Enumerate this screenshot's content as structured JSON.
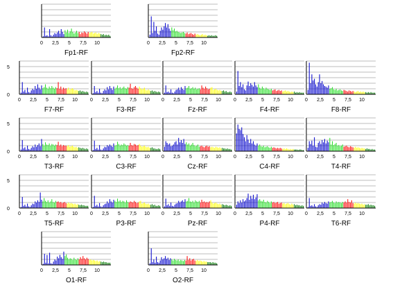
{
  "chart_data": [
    {
      "type": "bar",
      "name": "Fp1-RF",
      "xticks": [
        "0",
        "2,5",
        "5",
        "7,5",
        "10"
      ],
      "yticks": [],
      "xlim": [
        0,
        12.5
      ],
      "ylim": [
        0,
        6
      ],
      "grid": true,
      "values": [
        0,
        0.2,
        1.8,
        0.3,
        0.4,
        0.2,
        1.5,
        0.4,
        0.2,
        0.5,
        0.8,
        0.6,
        0.9,
        1.2,
        0.7,
        1.5,
        1.0,
        0.6,
        1.3,
        0.9,
        1.4,
        0.8,
        1.1,
        1.6,
        1.0,
        0.7,
        0.9,
        1.2,
        0.8,
        1.0,
        0.6,
        0.9,
        0.8,
        1.1,
        0.9,
        0.7,
        1.0,
        0.8,
        0.9,
        1.0,
        0.7,
        0.8,
        0.9,
        0.6,
        0.8,
        0.7,
        0.6,
        0.5,
        0.6,
        0.4,
        0.5,
        0.4,
        0.5,
        0.3
      ]
    },
    {
      "type": "bar",
      "name": "Fp2-RF",
      "xticks": [
        "0",
        "2,5",
        "5",
        "7,5",
        "10"
      ],
      "yticks": [],
      "xlim": [
        0,
        12.5
      ],
      "ylim": [
        0,
        6
      ],
      "grid": true,
      "values": [
        0,
        0.5,
        3.8,
        0.8,
        2.8,
        1.2,
        2.0,
        0.7,
        0.5,
        1.2,
        1.8,
        1.4,
        2.0,
        2.6,
        1.8,
        2.4,
        1.6,
        1.2,
        1.8,
        1.3,
        1.6,
        1.1,
        1.2,
        1.0,
        0.9,
        0.8,
        0.9,
        1.0,
        0.8,
        0.7,
        0.9,
        0.6,
        0.7,
        0.8,
        0.6,
        0.5,
        0.7,
        0.5,
        0.6,
        0.5,
        0.4,
        0.5,
        0.6,
        0.4,
        0.5,
        0.4,
        0.3,
        0.4,
        0.3,
        0.4,
        0.3,
        0.3,
        0.4,
        0.3
      ]
    },
    {
      "type": "bar",
      "name": "F7-RF",
      "xticks": [
        "0",
        "2,5",
        "5",
        "7,5",
        "10"
      ],
      "yticks": [
        "5",
        "0"
      ],
      "xlim": [
        0,
        12.5
      ],
      "ylim": [
        0,
        6
      ],
      "grid": true,
      "values": [
        0,
        0.3,
        2.2,
        0.5,
        0.8,
        0.3,
        1.2,
        0.4,
        0.3,
        0.7,
        1.0,
        0.8,
        1.5,
        1.0,
        1.8,
        1.2,
        0.9,
        1.6,
        1.1,
        1.3,
        1.8,
        1.2,
        1.0,
        1.4,
        1.1,
        1.5,
        1.2,
        1.0,
        1.3,
        1.1,
        2.2,
        1.0,
        1.4,
        0.9,
        1.2,
        1.0,
        1.1,
        0.9,
        1.2,
        0.8,
        1.0,
        1.1,
        0.9,
        0.7,
        0.8,
        0.7,
        0.6,
        0.7,
        0.5,
        0.6,
        0.5,
        0.4,
        0.5,
        0.4
      ]
    },
    {
      "type": "bar",
      "name": "F3-RF",
      "xticks": [
        "0",
        "2,5",
        "5",
        "7,5",
        "10"
      ],
      "yticks": [],
      "xlim": [
        0,
        12.5
      ],
      "ylim": [
        0,
        6
      ],
      "grid": true,
      "values": [
        0,
        0.2,
        1.5,
        0.4,
        0.6,
        0.3,
        1.0,
        0.3,
        0.2,
        0.6,
        0.9,
        0.7,
        1.3,
        0.9,
        1.5,
        1.1,
        0.8,
        1.4,
        1.0,
        1.2,
        1.6,
        1.1,
        1.3,
        1.0,
        1.2,
        1.4,
        1.1,
        1.0,
        1.3,
        1.2,
        1.9,
        1.1,
        1.0,
        1.3,
        1.5,
        1.2,
        1.0,
        1.4,
        1.1,
        0.9,
        1.0,
        1.2,
        0.8,
        0.7,
        0.9,
        0.7,
        0.6,
        0.7,
        0.5,
        0.6,
        0.5,
        0.4,
        0.5,
        0.4
      ]
    },
    {
      "type": "bar",
      "name": "Fz-RF",
      "xticks": [
        "0",
        "2,5",
        "5",
        "7,5",
        "10"
      ],
      "yticks": [],
      "xlim": [
        0,
        12.5
      ],
      "ylim": [
        0,
        6
      ],
      "grid": true,
      "values": [
        0,
        0.3,
        1.6,
        0.4,
        0.5,
        0.3,
        0.9,
        0.3,
        0.2,
        0.5,
        0.8,
        0.9,
        1.2,
        0.8,
        1.3,
        1.0,
        0.8,
        1.5,
        1.1,
        1.2,
        1.5,
        1.0,
        1.1,
        1.3,
        1.0,
        1.2,
        0.9,
        1.0,
        1.1,
        0.9,
        1.6,
        1.2,
        1.0,
        1.4,
        1.1,
        0.9,
        1.0,
        1.2,
        1.3,
        0.8,
        0.9,
        1.0,
        0.8,
        0.7,
        0.8,
        0.6,
        0.6,
        0.7,
        0.5,
        0.6,
        0.4,
        0.4,
        0.5,
        0.4
      ]
    },
    {
      "type": "bar",
      "name": "F4-RF",
      "xticks": [
        "0",
        "2,5",
        "5",
        "7,5",
        "10"
      ],
      "yticks": [],
      "xlim": [
        0,
        12.5
      ],
      "ylim": [
        0,
        6
      ],
      "grid": true,
      "values": [
        0,
        0.5,
        4.2,
        1.5,
        2.2,
        1.3,
        1.8,
        0.9,
        0.7,
        1.6,
        2.3,
        1.5,
        2.0,
        1.7,
        1.4,
        2.2,
        1.6,
        1.3,
        1.8,
        1.2,
        1.0,
        1.4,
        1.1,
        0.9,
        1.2,
        1.0,
        0.9,
        0.8,
        1.0,
        0.7,
        0.8,
        0.9,
        0.6,
        0.7,
        0.8,
        0.6,
        0.7,
        0.5,
        0.6,
        0.7,
        0.5,
        0.6,
        0.5,
        0.4,
        0.5,
        0.4,
        0.5,
        0.3,
        0.4,
        0.3,
        0.4,
        0.3,
        0.3,
        0.3
      ]
    },
    {
      "type": "bar",
      "name": "F8-RF",
      "xticks": [
        "0",
        "2,5",
        "5",
        "7,5",
        "10"
      ],
      "yticks": [],
      "xlim": [
        0,
        12.5
      ],
      "ylim": [
        0,
        6
      ],
      "grid": true,
      "values": [
        0,
        0.8,
        5.7,
        2.0,
        3.6,
        2.5,
        2.8,
        1.8,
        1.4,
        2.2,
        3.6,
        2.0,
        2.4,
        1.8,
        1.5,
        1.4,
        1.2,
        1.6,
        1.0,
        1.1,
        1.3,
        0.9,
        0.8,
        1.0,
        0.7,
        0.8,
        0.9,
        0.7,
        0.6,
        0.8,
        0.7,
        0.6,
        0.5,
        0.7,
        0.6,
        0.5,
        0.6,
        0.5,
        0.4,
        0.5,
        0.6,
        0.4,
        0.5,
        0.4,
        0.5,
        0.4,
        0.4,
        0.3,
        0.4,
        0.3,
        0.4,
        0.3,
        0.3,
        0.3
      ]
    },
    {
      "type": "bar",
      "name": "T3-RF",
      "xticks": [
        "0",
        "2,5",
        "5",
        "7,5",
        "10"
      ],
      "yticks": [
        "5",
        "0"
      ],
      "xlim": [
        0,
        12.5
      ],
      "ylim": [
        0,
        6
      ],
      "grid": true,
      "values": [
        0,
        0.3,
        2.0,
        0.5,
        0.7,
        0.3,
        1.0,
        0.4,
        0.3,
        0.6,
        0.9,
        0.7,
        1.2,
        0.8,
        1.1,
        1.4,
        0.9,
        2.2,
        1.3,
        1.0,
        1.6,
        1.2,
        1.1,
        1.4,
        1.0,
        1.3,
        1.2,
        1.0,
        1.2,
        1.1,
        1.7,
        1.0,
        1.2,
        0.9,
        1.1,
        1.0,
        1.0,
        0.9,
        1.1,
        0.8,
        0.9,
        1.0,
        0.8,
        0.7,
        0.8,
        0.6,
        0.7,
        0.6,
        0.5,
        0.6,
        0.5,
        0.4,
        0.5,
        0.4
      ]
    },
    {
      "type": "bar",
      "name": "C3-RF",
      "xticks": [
        "0",
        "2,5",
        "5",
        "7,5",
        "10"
      ],
      "yticks": [],
      "xlim": [
        0,
        12.5
      ],
      "ylim": [
        0,
        6
      ],
      "grid": true,
      "values": [
        0,
        0.2,
        1.9,
        0.4,
        0.6,
        0.3,
        1.1,
        0.3,
        0.2,
        0.5,
        0.8,
        0.7,
        1.1,
        0.9,
        1.2,
        1.0,
        0.8,
        1.4,
        1.0,
        1.1,
        1.7,
        1.3,
        1.0,
        1.2,
        1.1,
        1.4,
        1.2,
        1.0,
        1.1,
        1.0,
        1.5,
        1.1,
        1.0,
        1.3,
        1.2,
        1.0,
        1.1,
        1.3,
        1.0,
        0.8,
        0.9,
        1.0,
        0.8,
        0.7,
        0.8,
        0.6,
        0.6,
        0.7,
        0.5,
        0.5,
        0.4,
        0.4,
        0.5,
        0.4
      ]
    },
    {
      "type": "bar",
      "name": "Cz-RF",
      "xticks": [
        "0",
        "2,5",
        "5",
        "7,5",
        "10"
      ],
      "yticks": [],
      "xlim": [
        0,
        12.5
      ],
      "ylim": [
        0,
        6
      ],
      "grid": true,
      "values": [
        0,
        0.8,
        1.8,
        1.5,
        1.2,
        1.4,
        0.9,
        1.0,
        1.2,
        1.6,
        1.8,
        1.2,
        2.4,
        1.6,
        2.0,
        1.5,
        2.2,
        1.3,
        1.6,
        1.2,
        1.4,
        1.0,
        1.2,
        1.5,
        1.1,
        0.9,
        1.0,
        1.2,
        0.8,
        0.9,
        1.0,
        0.8,
        0.7,
        0.9,
        1.0,
        0.8,
        0.9,
        0.7,
        0.8,
        0.7,
        0.6,
        0.8,
        0.7,
        0.6,
        0.7,
        0.5,
        0.6,
        0.5,
        0.5,
        0.4,
        0.5,
        0.4,
        0.4,
        0.3
      ]
    },
    {
      "type": "bar",
      "name": "C4-RF",
      "xticks": [
        "0",
        "2,5",
        "5",
        "7,5",
        "10"
      ],
      "yticks": [],
      "xlim": [
        0,
        12.5
      ],
      "ylim": [
        0,
        6
      ],
      "grid": true,
      "values": [
        0,
        3.2,
        4.8,
        4.0,
        3.8,
        4.3,
        3.1,
        2.5,
        1.8,
        2.9,
        2.1,
        1.5,
        2.2,
        1.4,
        1.8,
        1.2,
        1.0,
        1.4,
        1.0,
        1.2,
        0.9,
        0.8,
        1.0,
        0.7,
        0.8,
        0.9,
        0.7,
        0.6,
        0.8,
        0.6,
        0.7,
        0.6,
        0.5,
        0.6,
        0.5,
        0.6,
        0.5,
        0.4,
        0.5,
        0.4,
        0.5,
        0.4,
        0.3,
        0.4,
        0.3,
        0.4,
        0.3,
        0.3,
        0.3,
        0.2,
        0.3,
        0.3,
        0.2,
        0.2
      ]
    },
    {
      "type": "bar",
      "name": "T4-RF",
      "xticks": [
        "0",
        "2,5",
        "5",
        "7,5",
        "10"
      ],
      "yticks": [],
      "xlim": [
        0,
        12.5
      ],
      "ylim": [
        0,
        6
      ],
      "grid": true,
      "values": [
        0,
        0.6,
        1.8,
        1.3,
        1.9,
        1.0,
        2.5,
        0.8,
        0.7,
        1.5,
        1.8,
        1.3,
        2.0,
        1.6,
        2.2,
        1.4,
        1.9,
        1.6,
        2.4,
        1.2,
        1.8,
        1.1,
        1.3,
        1.5,
        1.0,
        1.1,
        0.9,
        1.0,
        1.2,
        0.8,
        0.9,
        1.0,
        0.8,
        0.7,
        0.9,
        0.8,
        0.7,
        0.6,
        0.8,
        0.6,
        0.7,
        0.6,
        0.5,
        0.6,
        0.5,
        0.5,
        0.4,
        0.5,
        0.4,
        0.4,
        0.3,
        0.4,
        0.3,
        0.3
      ]
    },
    {
      "type": "bar",
      "name": "T5-RF",
      "xticks": [
        "0",
        "2,5",
        "5",
        "7,5",
        "10"
      ],
      "yticks": [
        "5",
        "0"
      ],
      "xlim": [
        0,
        12.5
      ],
      "ylim": [
        0,
        6
      ],
      "grid": true,
      "values": [
        0,
        0.2,
        2.0,
        0.4,
        0.6,
        0.3,
        0.8,
        0.3,
        0.2,
        0.5,
        0.8,
        0.7,
        1.2,
        1.0,
        1.4,
        1.1,
        2.8,
        1.5,
        1.2,
        1.8,
        1.3,
        1.1,
        1.4,
        1.0,
        1.2,
        1.6,
        1.1,
        1.0,
        1.3,
        1.1,
        1.2,
        1.0,
        1.1,
        0.9,
        1.0,
        1.1,
        0.9,
        0.8,
        1.0,
        0.8,
        0.9,
        0.8,
        0.7,
        0.8,
        0.6,
        0.7,
        0.6,
        0.5,
        0.6,
        0.5,
        0.5,
        0.4,
        0.4,
        0.4
      ]
    },
    {
      "type": "bar",
      "name": "P3-RF",
      "xticks": [
        "0",
        "2,5",
        "5",
        "7,5",
        "10"
      ],
      "yticks": [],
      "xlim": [
        0,
        12.5
      ],
      "ylim": [
        0,
        6
      ],
      "grid": true,
      "values": [
        0,
        0.2,
        2.2,
        0.4,
        0.6,
        0.3,
        0.9,
        0.3,
        0.2,
        0.5,
        0.7,
        0.8,
        1.2,
        0.9,
        1.6,
        1.2,
        1.0,
        1.5,
        1.3,
        1.1,
        1.7,
        1.2,
        1.4,
        1.1,
        1.3,
        1.2,
        1.0,
        1.4,
        1.1,
        1.0,
        1.2,
        1.1,
        1.0,
        1.3,
        1.1,
        0.9,
        1.0,
        1.2,
        1.3,
        0.8,
        0.9,
        1.0,
        0.8,
        0.7,
        0.8,
        0.6,
        0.6,
        0.7,
        0.5,
        0.6,
        0.4,
        0.4,
        0.5,
        0.4
      ]
    },
    {
      "type": "bar",
      "name": "Pz-RF",
      "xticks": [
        "0",
        "2,5",
        "5",
        "7,5",
        "10"
      ],
      "yticks": [],
      "xlim": [
        0,
        12.5
      ],
      "ylim": [
        0,
        6
      ],
      "grid": true,
      "values": [
        0,
        0.3,
        1.7,
        0.5,
        0.7,
        0.4,
        1.0,
        0.4,
        0.3,
        0.6,
        0.8,
        0.9,
        1.3,
        1.0,
        1.2,
        1.4,
        1.1,
        1.6,
        1.2,
        1.3,
        1.8,
        1.2,
        1.1,
        1.3,
        1.0,
        1.4,
        1.2,
        1.1,
        1.3,
        1.0,
        1.5,
        1.1,
        1.2,
        1.0,
        1.1,
        1.0,
        1.2,
        1.4,
        1.0,
        0.8,
        0.9,
        1.0,
        0.8,
        0.7,
        0.8,
        0.6,
        0.7,
        0.6,
        0.5,
        0.6,
        0.5,
        0.4,
        0.5,
        0.4
      ]
    },
    {
      "type": "bar",
      "name": "P4-RF",
      "xticks": [
        "0",
        "2,5",
        "5",
        "7,5",
        "10"
      ],
      "yticks": [],
      "xlim": [
        0,
        12.5
      ],
      "ylim": [
        0,
        6
      ],
      "grid": true,
      "values": [
        0,
        0.6,
        1.2,
        0.9,
        1.4,
        1.0,
        1.6,
        1.2,
        1.4,
        1.8,
        2.6,
        1.5,
        2.2,
        1.7,
        2.4,
        1.6,
        1.9,
        2.5,
        1.4,
        1.6,
        1.3,
        1.2,
        1.5,
        1.1,
        1.0,
        1.3,
        1.1,
        0.9,
        1.2,
        1.0,
        1.1,
        0.9,
        1.0,
        1.1,
        0.8,
        0.9,
        1.0,
        0.8,
        0.9,
        0.7,
        0.8,
        0.9,
        0.7,
        0.6,
        0.8,
        0.6,
        0.7,
        0.5,
        0.6,
        0.5,
        0.5,
        0.4,
        0.5,
        0.4
      ]
    },
    {
      "type": "bar",
      "name": "T6-RF",
      "xticks": [
        "0",
        "2,5",
        "5",
        "7,5",
        "10"
      ],
      "yticks": [],
      "xlim": [
        0,
        12.5
      ],
      "ylim": [
        0,
        6
      ],
      "grid": true,
      "values": [
        0,
        0.2,
        1.8,
        0.4,
        0.5,
        0.3,
        0.7,
        0.3,
        0.2,
        0.5,
        0.7,
        0.6,
        1.0,
        0.8,
        1.1,
        0.9,
        0.8,
        1.2,
        1.0,
        1.1,
        1.3,
        1.0,
        0.9,
        1.2,
        1.0,
        1.1,
        1.0,
        0.9,
        1.1,
        1.0,
        1.2,
        1.0,
        1.6,
        1.1,
        1.0,
        1.4,
        0.9,
        0.8,
        1.0,
        0.8,
        0.9,
        0.8,
        0.7,
        0.8,
        0.6,
        0.7,
        0.6,
        0.6,
        0.7,
        0.5,
        0.6,
        0.5,
        0.5,
        0.4
      ]
    },
    {
      "type": "bar",
      "name": "O1-RF",
      "xticks": [
        "0",
        "2,5",
        "5",
        "7,5",
        "10"
      ],
      "yticks": [],
      "xlim": [
        0,
        12.5
      ],
      "ylim": [
        0,
        6
      ],
      "grid": true,
      "values": [
        0,
        0.2,
        2.0,
        0.4,
        1.8,
        0.3,
        2.2,
        0.3,
        0.2,
        0.6,
        1.0,
        0.8,
        1.5,
        1.2,
        1.8,
        1.4,
        1.1,
        2.4,
        1.6,
        1.9,
        1.3,
        1.0,
        1.2,
        1.1,
        0.9,
        1.3,
        1.0,
        0.9,
        1.2,
        1.0,
        1.4,
        1.1,
        1.6,
        1.2,
        1.0,
        1.3,
        1.1,
        0.9,
        1.0,
        0.8,
        0.9,
        0.8,
        0.7,
        0.8,
        0.6,
        0.7,
        0.6,
        0.5,
        0.6,
        0.5,
        0.5,
        0.4,
        0.4,
        0.4
      ]
    },
    {
      "type": "bar",
      "name": "O2-RF",
      "xticks": [
        "0",
        "2,5",
        "5",
        "7,5",
        "10"
      ],
      "yticks": [],
      "xlim": [
        0,
        12.5
      ],
      "ylim": [
        0,
        6
      ],
      "grid": true,
      "values": [
        0,
        0.3,
        3.0,
        0.5,
        1.0,
        0.4,
        1.5,
        0.5,
        0.4,
        0.8,
        1.4,
        1.0,
        1.2,
        1.6,
        1.1,
        1.3,
        0.9,
        1.2,
        1.0,
        0.8,
        1.1,
        0.9,
        0.8,
        1.0,
        0.7,
        0.9,
        0.8,
        0.7,
        0.9,
        0.8,
        1.6,
        0.9,
        1.2,
        0.8,
        1.0,
        1.1,
        0.8,
        0.7,
        0.9,
        0.7,
        0.8,
        0.7,
        0.6,
        0.7,
        0.6,
        0.6,
        0.5,
        0.5,
        0.5,
        0.4,
        0.5,
        0.4,
        0.4,
        0.3
      ]
    }
  ],
  "band_colors": {
    "delta": "#0000cc",
    "theta": "#22dd22",
    "alpha": "#ff0000",
    "alpha_hi": "#ffff00",
    "beta": "#007700",
    "beta_hi": "#00dddd"
  },
  "band_edges": [
    4,
    6.5,
    8.5,
    10.5,
    12.5
  ]
}
